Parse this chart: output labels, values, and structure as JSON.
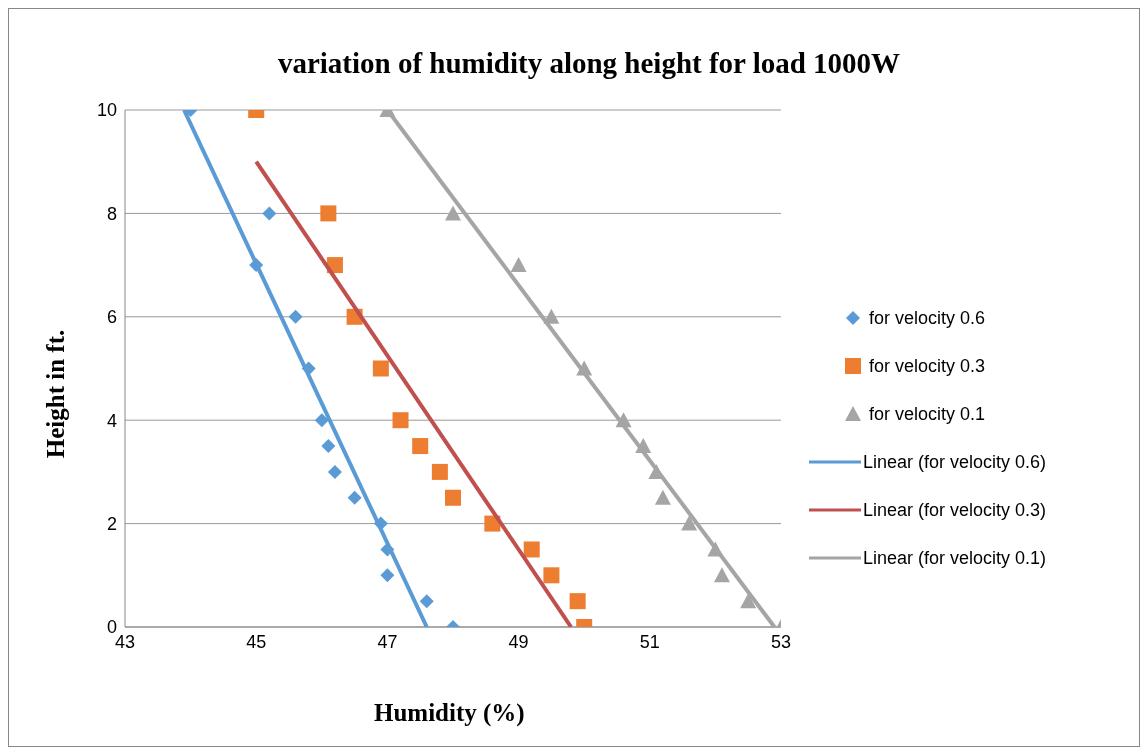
{
  "chart_data": {
    "type": "scatter",
    "title": "variation of humidity along height for load 1000W",
    "xlabel": "Humidity (%)",
    "ylabel": "Height in ft.",
    "xlim": [
      43,
      53
    ],
    "xticks": [
      43,
      45,
      47,
      49,
      51,
      53
    ],
    "ylim": [
      0,
      10
    ],
    "yticks": [
      0,
      2,
      4,
      6,
      8,
      10
    ],
    "grid": "y",
    "legend": "right",
    "series": [
      {
        "name": "for velocity 0.6",
        "color": "#5b9bd5",
        "marker": "diamond",
        "x": [
          44,
          45.2,
          45,
          45.6,
          45.8,
          46,
          46.1,
          46.2,
          46.5,
          46.9,
          47,
          47,
          47.6,
          48
        ],
        "values": [
          10,
          8,
          7,
          6,
          5,
          4,
          3.5,
          3,
          2.5,
          2,
          1.5,
          1,
          0.5,
          0
        ]
      },
      {
        "name": "for velocity 0.3",
        "color": "#ed7d31",
        "marker": "square",
        "x": [
          45,
          46.1,
          46.2,
          46.5,
          46.9,
          47.2,
          47.5,
          47.8,
          48,
          48.6,
          49.2,
          49.5,
          49.9,
          50
        ],
        "values": [
          10,
          8,
          7,
          6,
          5,
          4,
          3.5,
          3,
          2.5,
          2,
          1.5,
          1,
          0.5,
          0
        ]
      },
      {
        "name": "for velocity 0.1",
        "color": "#a5a5a5",
        "marker": "triangle",
        "x": [
          47,
          48,
          49,
          49.5,
          50,
          50.6,
          50.9,
          51.1,
          51.2,
          51.6,
          52,
          52.1,
          52.5,
          53
        ],
        "values": [
          10,
          8,
          7,
          6,
          5,
          4,
          3.5,
          3,
          2.5,
          2,
          1.5,
          1,
          0.5,
          0
        ]
      },
      {
        "name": "Linear (for velocity 0.6)",
        "type": "line",
        "color": "#5b9bd5",
        "x": [
          43.9,
          47.6
        ],
        "values": [
          10,
          0
        ]
      },
      {
        "name": "Linear (for velocity 0.3)",
        "type": "line",
        "color": "#c0504d",
        "x": [
          45,
          49.8
        ],
        "values": [
          9,
          0
        ]
      },
      {
        "name": "Linear (for velocity 0.1)",
        "type": "line",
        "color": "#a5a5a5",
        "x": [
          47,
          52.9
        ],
        "values": [
          10,
          0
        ]
      }
    ]
  }
}
